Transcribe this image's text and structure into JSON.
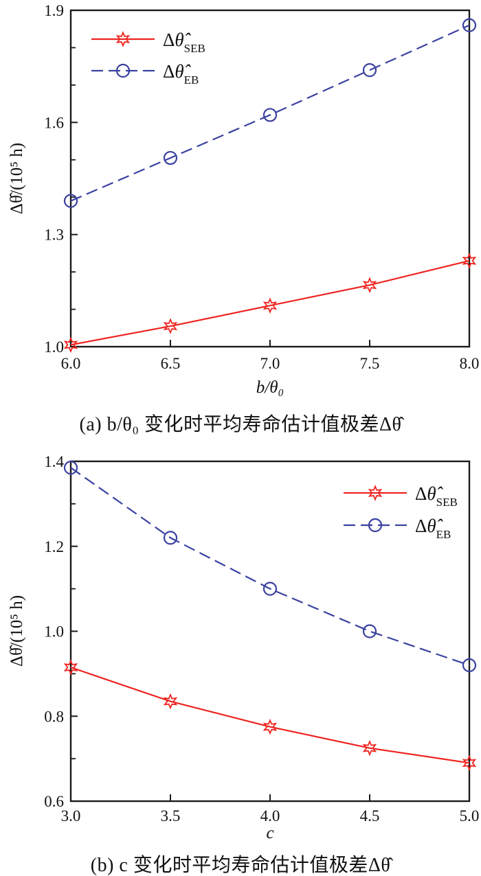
{
  "figure": {
    "background": "#ffffff",
    "frame_color": "#1a1a1a"
  },
  "chart_data": [
    {
      "id": "a",
      "type": "line",
      "x": [
        6.0,
        6.5,
        7.0,
        7.5,
        8.0
      ],
      "series": [
        {
          "label_prefix": "Δ",
          "label_symbol": "θ̂",
          "label_sub": "SEB",
          "values": [
            1.005,
            1.055,
            1.11,
            1.165,
            1.23
          ],
          "color": "#ee2420",
          "line": "solid",
          "marker": "star6"
        },
        {
          "label_prefix": "Δ",
          "label_symbol": "θ̂",
          "label_sub": "EB",
          "values": [
            1.39,
            1.505,
            1.62,
            1.74,
            1.86
          ],
          "color": "#3a41a0",
          "line": "dashed",
          "marker": "circle"
        }
      ],
      "xlabel": "b/θ₀",
      "ylabel": "Δθ̂/(10⁵ h)",
      "xlim": [
        6.0,
        8.0
      ],
      "ylim": [
        1.0,
        1.9
      ],
      "xticks": [
        6.0,
        6.5,
        7.0,
        7.5,
        8.0
      ],
      "yticks": [
        1.0,
        1.3,
        1.6,
        1.9
      ],
      "y_minor": [
        1.1,
        1.2,
        1.4,
        1.5,
        1.7,
        1.8
      ],
      "grid": "off",
      "legend_position": "top-left",
      "caption": "(a) b/θ₀ 变化时平均寿命估计值极差Δθ̂"
    },
    {
      "id": "b",
      "type": "line",
      "x": [
        3.0,
        3.5,
        4.0,
        4.5,
        5.0
      ],
      "series": [
        {
          "label_prefix": "Δ",
          "label_symbol": "θ̂",
          "label_sub": "SEB",
          "values": [
            0.915,
            0.835,
            0.775,
            0.725,
            0.69
          ],
          "color": "#ee2420",
          "line": "solid",
          "marker": "star6"
        },
        {
          "label_prefix": "Δ",
          "label_symbol": "θ̂",
          "label_sub": "EB",
          "values": [
            1.385,
            1.22,
            1.1,
            1.0,
            0.92
          ],
          "color": "#3a41a0",
          "line": "dashed",
          "marker": "circle"
        }
      ],
      "xlabel": "c",
      "ylabel": "Δθ̂/(10⁵ h)",
      "xlim": [
        3.0,
        5.0
      ],
      "ylim": [
        0.6,
        1.4
      ],
      "xticks": [
        3.0,
        3.5,
        4.0,
        4.5,
        5.0
      ],
      "yticks": [
        0.6,
        0.8,
        1.0,
        1.2,
        1.4
      ],
      "y_minor": [
        0.7,
        0.9,
        1.1,
        1.3
      ],
      "grid": "off",
      "legend_position": "top-right",
      "caption": "(b) c 变化时平均寿命估计值极差Δθ̂"
    }
  ]
}
